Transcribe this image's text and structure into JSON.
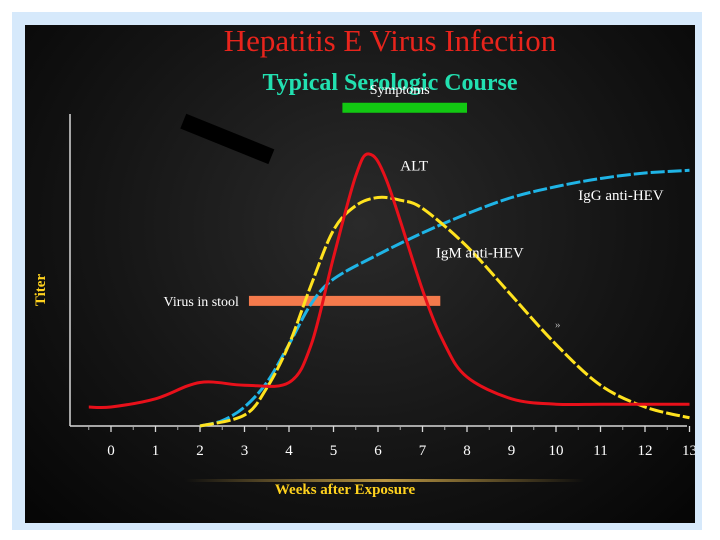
{
  "chart_data": {
    "type": "line",
    "title": "Hepatitis E Virus Infection",
    "subtitle": "Typical Serologic Course",
    "xlabel": "Weeks after Exposure",
    "ylabel": "Titer",
    "xlim": [
      -0.5,
      13
    ],
    "x_ticks": [
      "0",
      "1",
      "2",
      "3",
      "4",
      "5",
      "6",
      "7",
      "8",
      "9",
      "10",
      "11",
      "12",
      "13"
    ],
    "series": [
      {
        "name": "ALT",
        "color": "#e8101a",
        "dash": false,
        "points": [
          [
            -0.5,
            0.07
          ],
          [
            0,
            0.07
          ],
          [
            1,
            0.1
          ],
          [
            2,
            0.16
          ],
          [
            3,
            0.15
          ],
          [
            4,
            0.16
          ],
          [
            4.5,
            0.3
          ],
          [
            5,
            0.62
          ],
          [
            5.5,
            0.92
          ],
          [
            5.8,
            1.0
          ],
          [
            6.2,
            0.9
          ],
          [
            7,
            0.5
          ],
          [
            7.5,
            0.3
          ],
          [
            8,
            0.18
          ],
          [
            9,
            0.1
          ],
          [
            10,
            0.08
          ],
          [
            11,
            0.08
          ],
          [
            12,
            0.08
          ],
          [
            13,
            0.08
          ]
        ]
      },
      {
        "name": "IgG anti-HEV",
        "color": "#1fb4e6",
        "dash": true,
        "points": [
          [
            2,
            0.0
          ],
          [
            2.5,
            0.02
          ],
          [
            3,
            0.07
          ],
          [
            3.5,
            0.16
          ],
          [
            4,
            0.3
          ],
          [
            4.5,
            0.45
          ],
          [
            5,
            0.54
          ],
          [
            6,
            0.63
          ],
          [
            7,
            0.71
          ],
          [
            8,
            0.78
          ],
          [
            9,
            0.84
          ],
          [
            10,
            0.88
          ],
          [
            11,
            0.91
          ],
          [
            12,
            0.93
          ],
          [
            13,
            0.94
          ]
        ]
      },
      {
        "name": "IgM anti-HEV",
        "color": "#ffe21e",
        "dash": true,
        "points": [
          [
            2,
            0.0
          ],
          [
            3,
            0.04
          ],
          [
            3.5,
            0.14
          ],
          [
            4,
            0.3
          ],
          [
            4.5,
            0.52
          ],
          [
            5,
            0.72
          ],
          [
            5.5,
            0.81
          ],
          [
            6,
            0.84
          ],
          [
            6.5,
            0.83
          ],
          [
            7,
            0.8
          ],
          [
            8,
            0.66
          ],
          [
            9,
            0.48
          ],
          [
            10,
            0.3
          ],
          [
            11,
            0.15
          ],
          [
            12,
            0.07
          ],
          [
            13,
            0.03
          ]
        ]
      }
    ],
    "bars": [
      {
        "name": "Symptoms",
        "color": "#12c812",
        "x": [
          5.2,
          8.0
        ],
        "y": 1.17
      },
      {
        "name": "Virus in stool",
        "color": "#f47a4c",
        "x": [
          3.1,
          7.4
        ],
        "y": 0.46
      }
    ]
  }
}
